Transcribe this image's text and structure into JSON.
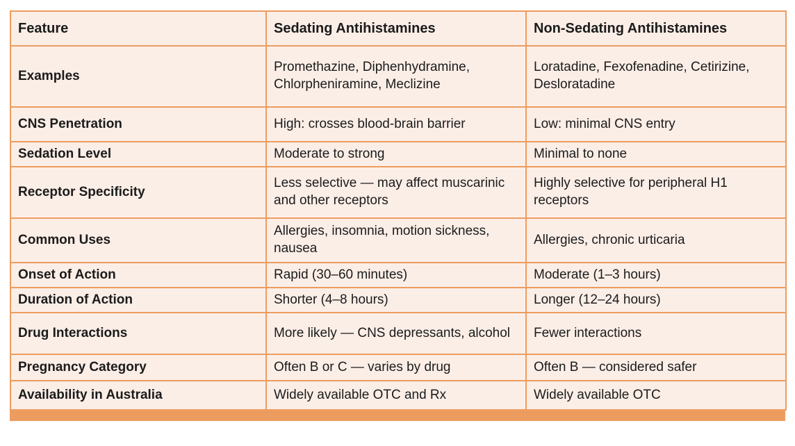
{
  "theme": {
    "border_color": "#ED9C5F",
    "cell_background": "#FBEEE7",
    "text_color": "#1b1b1b",
    "accent_bar_color": "#ED9C5F"
  },
  "table": {
    "headers": [
      "Feature",
      "Sedating Antihistamines",
      "Non-Sedating Antihistamines"
    ],
    "rows": [
      {
        "feature": "Examples",
        "sedating": "Promethazine, Diphenhydramine, Chlorpheniramine, Meclizine",
        "non_sedating": "Loratadine, Fexofenadine, Cetirizine, Desloratadine"
      },
      {
        "feature": "CNS Penetration",
        "sedating": "High: crosses blood-brain barrier",
        "non_sedating": "Low: minimal CNS entry"
      },
      {
        "feature": "Sedation Level",
        "sedating": "Moderate to strong",
        "non_sedating": "Minimal to none"
      },
      {
        "feature": "Receptor Specificity",
        "sedating": "Less selective — may affect muscarinic and other receptors",
        "non_sedating": "Highly selective for peripheral H1 receptors"
      },
      {
        "feature": "Common Uses",
        "sedating": "Allergies, insomnia, motion sickness, nausea",
        "non_sedating": "Allergies, chronic urticaria"
      },
      {
        "feature": "Onset of Action",
        "sedating": "Rapid (30–60 minutes)",
        "non_sedating": "Moderate (1–3 hours)"
      },
      {
        "feature": "Duration of Action",
        "sedating": "Shorter (4–8 hours)",
        "non_sedating": "Longer (12–24 hours)"
      },
      {
        "feature": "Drug Interactions",
        "sedating": "More likely — CNS depressants, alcohol",
        "non_sedating": "Fewer interactions"
      },
      {
        "feature": "Pregnancy Category",
        "sedating": "Often B or C — varies by drug",
        "non_sedating": "Often B — considered safer"
      },
      {
        "feature": "Availability in Australia",
        "sedating": "Widely available OTC and Rx",
        "non_sedating": "Widely available OTC"
      }
    ]
  }
}
